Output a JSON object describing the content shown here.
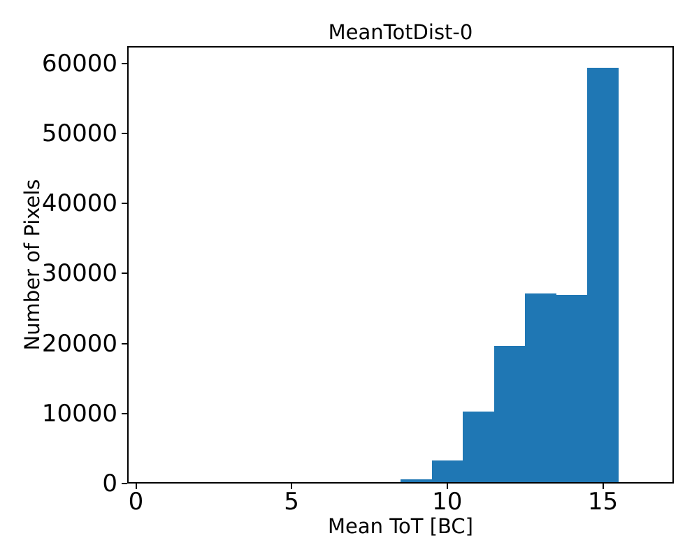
{
  "figure": {
    "background": "#ffffff"
  },
  "chart_data": {
    "type": "bar",
    "subtype": "histogram",
    "title": "MeanTotDist-0",
    "xlabel": "Mean ToT [BC]",
    "ylabel": "Number of Pixels",
    "bar_color": "#1f77b4",
    "bin_width": 1.0,
    "bin_centers": [
      8,
      9,
      10,
      11,
      12,
      13,
      14,
      15
    ],
    "counts": [
      170,
      600,
      3340,
      10310,
      19690,
      27140,
      26970,
      59400
    ],
    "xlim": [
      -0.28,
      17.28
    ],
    "ylim": [
      0,
      62470
    ],
    "xticks": [
      0,
      5,
      10,
      15
    ],
    "xtick_labels": [
      "0",
      "5",
      "10",
      "15"
    ],
    "yticks": [
      0,
      10000,
      20000,
      30000,
      40000,
      50000,
      60000
    ],
    "ytick_labels": [
      "0",
      "10000",
      "20000",
      "30000",
      "40000",
      "50000",
      "60000"
    ],
    "grid": false,
    "legend_position": "none"
  }
}
